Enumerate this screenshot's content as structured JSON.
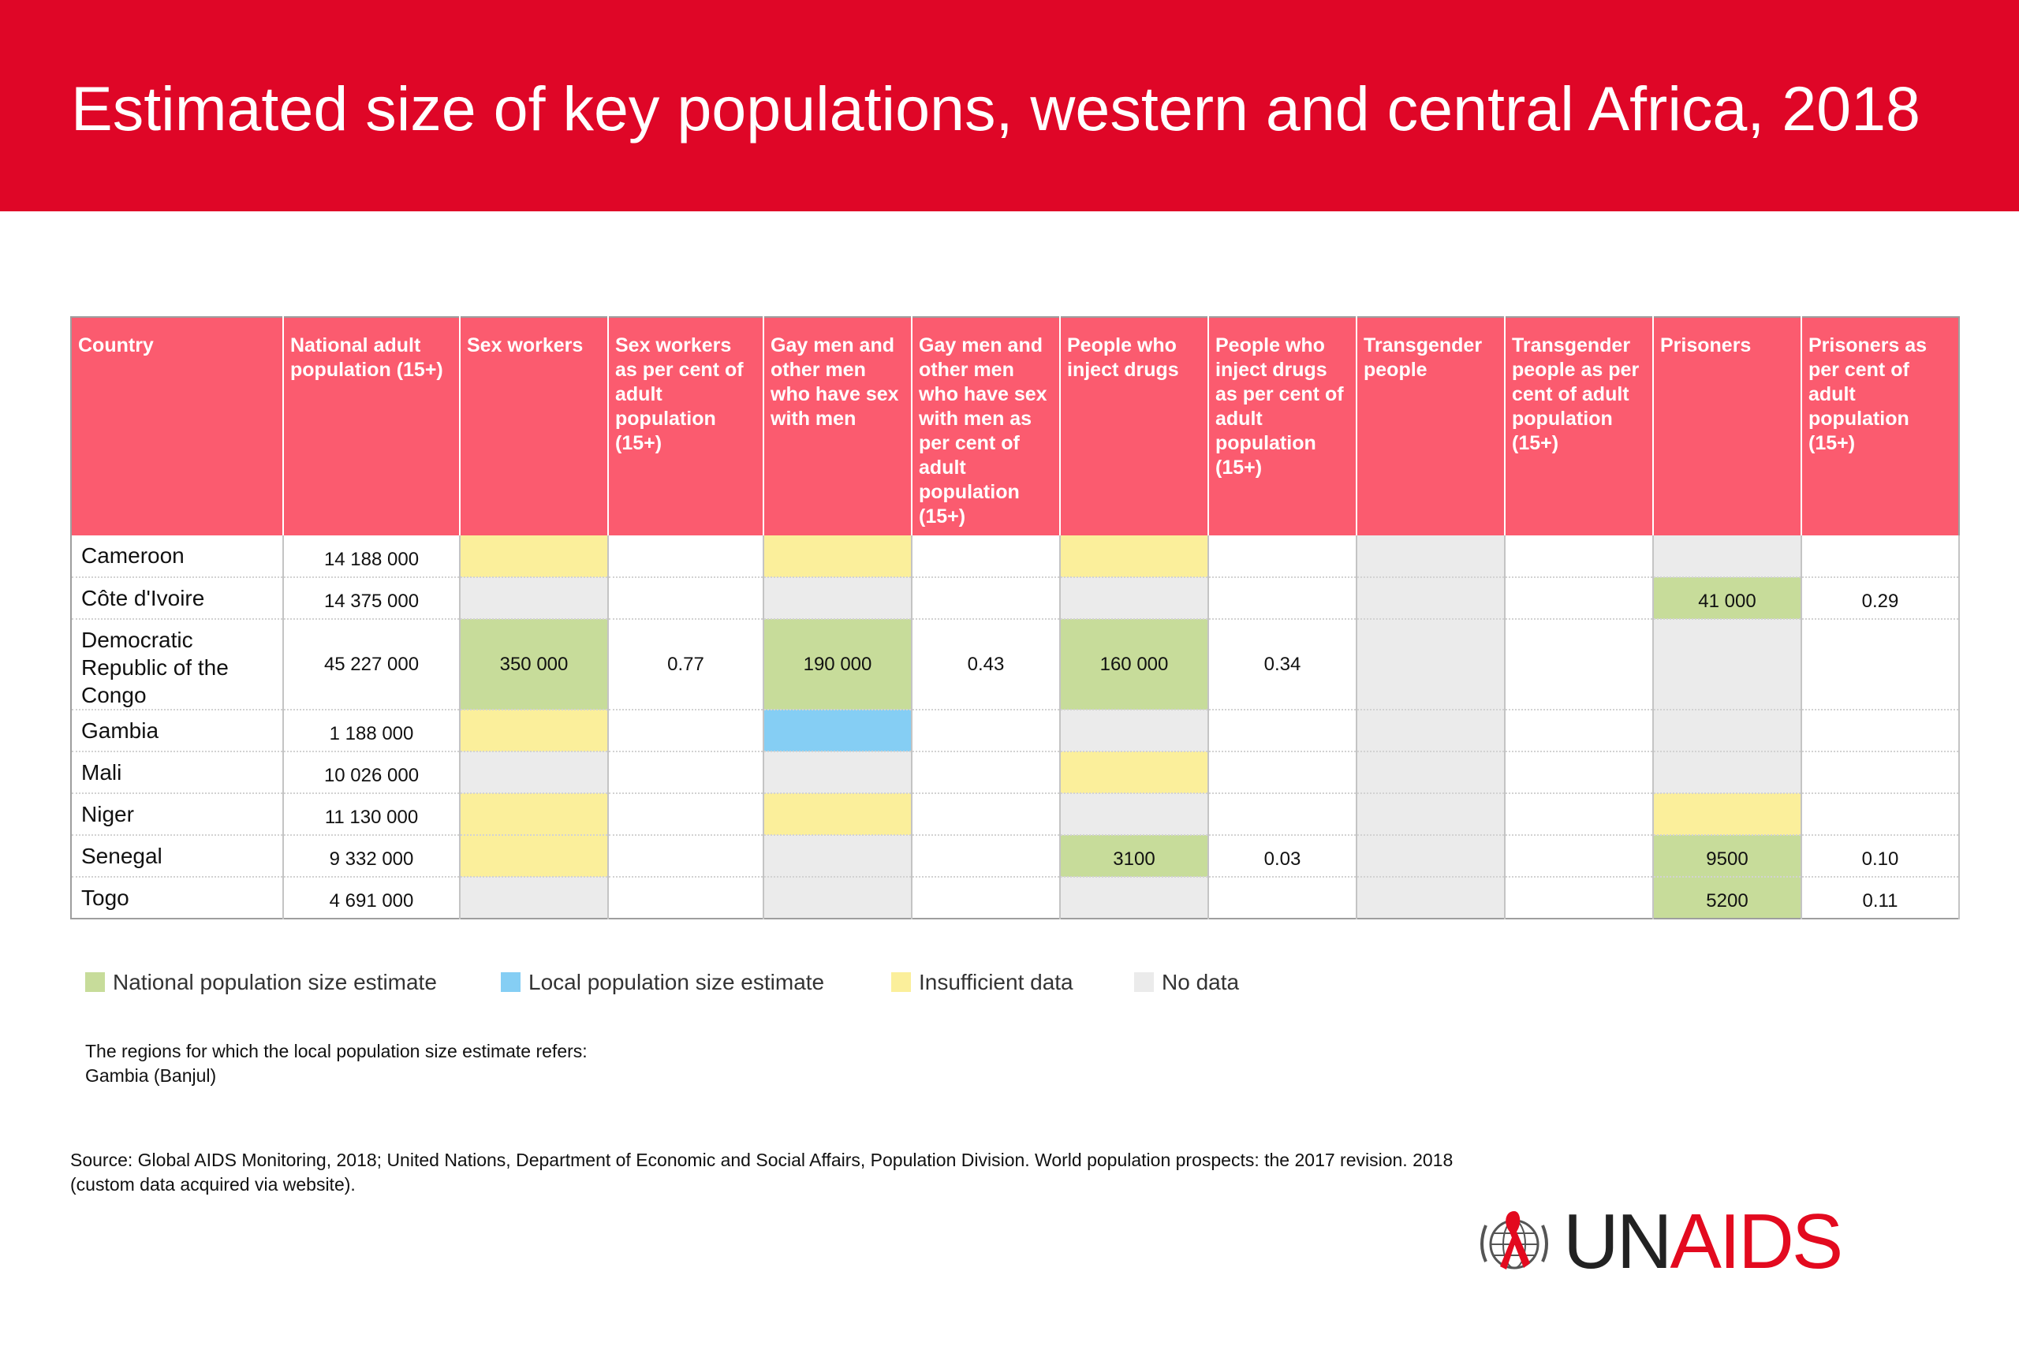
{
  "title": "Estimated size of key populations, western and central Africa, 2018",
  "chart_data": {
    "type": "table",
    "columns": [
      "Country",
      "National adult population (15+)",
      "Sex workers",
      "Sex workers as per cent of adult population (15+)",
      "Gay men and other men who  have sex with men",
      "Gay men and other men who have sex with men as per cent of adult population (15+)",
      "People who inject drugs",
      "People who inject drugs  as  per cent of adult population (15+)",
      "Transgender people",
      "Transgender people as per cent of adult population (15+)",
      "Prisoners",
      "Prisoners as per cent of adult population (15+)"
    ],
    "rows": [
      {
        "country": "Cameroon",
        "cells": [
          {
            "v": "14 188 000",
            "s": ""
          },
          {
            "v": "",
            "s": "ins"
          },
          {
            "v": "",
            "s": ""
          },
          {
            "v": "",
            "s": "ins"
          },
          {
            "v": "",
            "s": ""
          },
          {
            "v": "",
            "s": "ins"
          },
          {
            "v": "",
            "s": ""
          },
          {
            "v": "",
            "s": "nod"
          },
          {
            "v": "",
            "s": ""
          },
          {
            "v": "",
            "s": "nod"
          },
          {
            "v": "",
            "s": ""
          }
        ]
      },
      {
        "country": "Côte d'Ivoire",
        "cells": [
          {
            "v": "14 375 000",
            "s": ""
          },
          {
            "v": "",
            "s": "nod"
          },
          {
            "v": "",
            "s": ""
          },
          {
            "v": "",
            "s": "nod"
          },
          {
            "v": "",
            "s": ""
          },
          {
            "v": "",
            "s": "nod"
          },
          {
            "v": "",
            "s": ""
          },
          {
            "v": "",
            "s": "nod"
          },
          {
            "v": "",
            "s": ""
          },
          {
            "v": "41 000",
            "s": "nat"
          },
          {
            "v": "0.29",
            "s": ""
          }
        ]
      },
      {
        "country": "Democratic Republic  of the Congo",
        "tall": true,
        "cells": [
          {
            "v": "45 227 000",
            "s": ""
          },
          {
            "v": "350 000",
            "s": "nat"
          },
          {
            "v": "0.77",
            "s": ""
          },
          {
            "v": "190 000",
            "s": "nat"
          },
          {
            "v": "0.43",
            "s": ""
          },
          {
            "v": "160 000",
            "s": "nat"
          },
          {
            "v": "0.34",
            "s": ""
          },
          {
            "v": "",
            "s": "nod"
          },
          {
            "v": "",
            "s": ""
          },
          {
            "v": "",
            "s": "nod"
          },
          {
            "v": "",
            "s": ""
          }
        ]
      },
      {
        "country": "Gambia",
        "cells": [
          {
            "v": "1 188 000",
            "s": ""
          },
          {
            "v": "",
            "s": "ins"
          },
          {
            "v": "",
            "s": ""
          },
          {
            "v": "",
            "s": "loc"
          },
          {
            "v": "",
            "s": ""
          },
          {
            "v": "",
            "s": "nod"
          },
          {
            "v": "",
            "s": ""
          },
          {
            "v": "",
            "s": "nod"
          },
          {
            "v": "",
            "s": ""
          },
          {
            "v": "",
            "s": "nod"
          },
          {
            "v": "",
            "s": ""
          }
        ]
      },
      {
        "country": "Mali",
        "cells": [
          {
            "v": "10 026 000",
            "s": ""
          },
          {
            "v": "",
            "s": "nod"
          },
          {
            "v": "",
            "s": ""
          },
          {
            "v": "",
            "s": "nod"
          },
          {
            "v": "",
            "s": ""
          },
          {
            "v": "",
            "s": "ins"
          },
          {
            "v": "",
            "s": ""
          },
          {
            "v": "",
            "s": "nod"
          },
          {
            "v": "",
            "s": ""
          },
          {
            "v": "",
            "s": "nod"
          },
          {
            "v": "",
            "s": ""
          }
        ]
      },
      {
        "country": "Niger",
        "cells": [
          {
            "v": "11 130 000",
            "s": ""
          },
          {
            "v": "",
            "s": "ins"
          },
          {
            "v": "",
            "s": ""
          },
          {
            "v": "",
            "s": "ins"
          },
          {
            "v": "",
            "s": ""
          },
          {
            "v": "",
            "s": "nod"
          },
          {
            "v": "",
            "s": ""
          },
          {
            "v": "",
            "s": "nod"
          },
          {
            "v": "",
            "s": ""
          },
          {
            "v": "",
            "s": "ins"
          },
          {
            "v": "",
            "s": ""
          }
        ]
      },
      {
        "country": "Senegal",
        "cells": [
          {
            "v": "9 332 000",
            "s": ""
          },
          {
            "v": "",
            "s": "ins"
          },
          {
            "v": "",
            "s": ""
          },
          {
            "v": "",
            "s": "nod"
          },
          {
            "v": "",
            "s": ""
          },
          {
            "v": "3100",
            "s": "nat"
          },
          {
            "v": "0.03",
            "s": ""
          },
          {
            "v": "",
            "s": "nod"
          },
          {
            "v": "",
            "s": ""
          },
          {
            "v": "9500",
            "s": "nat"
          },
          {
            "v": "0.10",
            "s": ""
          }
        ]
      },
      {
        "country": "Togo",
        "cells": [
          {
            "v": "4 691 000",
            "s": ""
          },
          {
            "v": "",
            "s": "nod"
          },
          {
            "v": "",
            "s": ""
          },
          {
            "v": "",
            "s": "nod"
          },
          {
            "v": "",
            "s": ""
          },
          {
            "v": "",
            "s": "nod"
          },
          {
            "v": "",
            "s": ""
          },
          {
            "v": "",
            "s": "nod"
          },
          {
            "v": "",
            "s": ""
          },
          {
            "v": "5200",
            "s": "nat"
          },
          {
            "v": "0.11",
            "s": ""
          }
        ]
      }
    ]
  },
  "legend": [
    {
      "label": "National population size estimate",
      "color": "#c7dc9a"
    },
    {
      "label": "Local population size estimate",
      "color": "#85cef4"
    },
    {
      "label": "Insufficient data",
      "color": "#fbef9b"
    },
    {
      "label": "No data",
      "color": "#ebebeb"
    }
  ],
  "note": {
    "line1": "The regions for which the local population size estimate refers:",
    "line2": "Gambia (Banjul)"
  },
  "source": "Source: Global AIDS Monitoring, 2018; United Nations, Department of Economic and Social Affairs, Population Division. World population prospects: the 2017 revision. 2018 (custom data acquired via website).",
  "logo": {
    "prefix": "UN",
    "suffix": "AIDS",
    "icon": "globe-laurel-ribbon-icon"
  },
  "colors": {
    "banner": "#df0627",
    "header": "#fb5b6f",
    "logo_red": "#e30a1f"
  }
}
